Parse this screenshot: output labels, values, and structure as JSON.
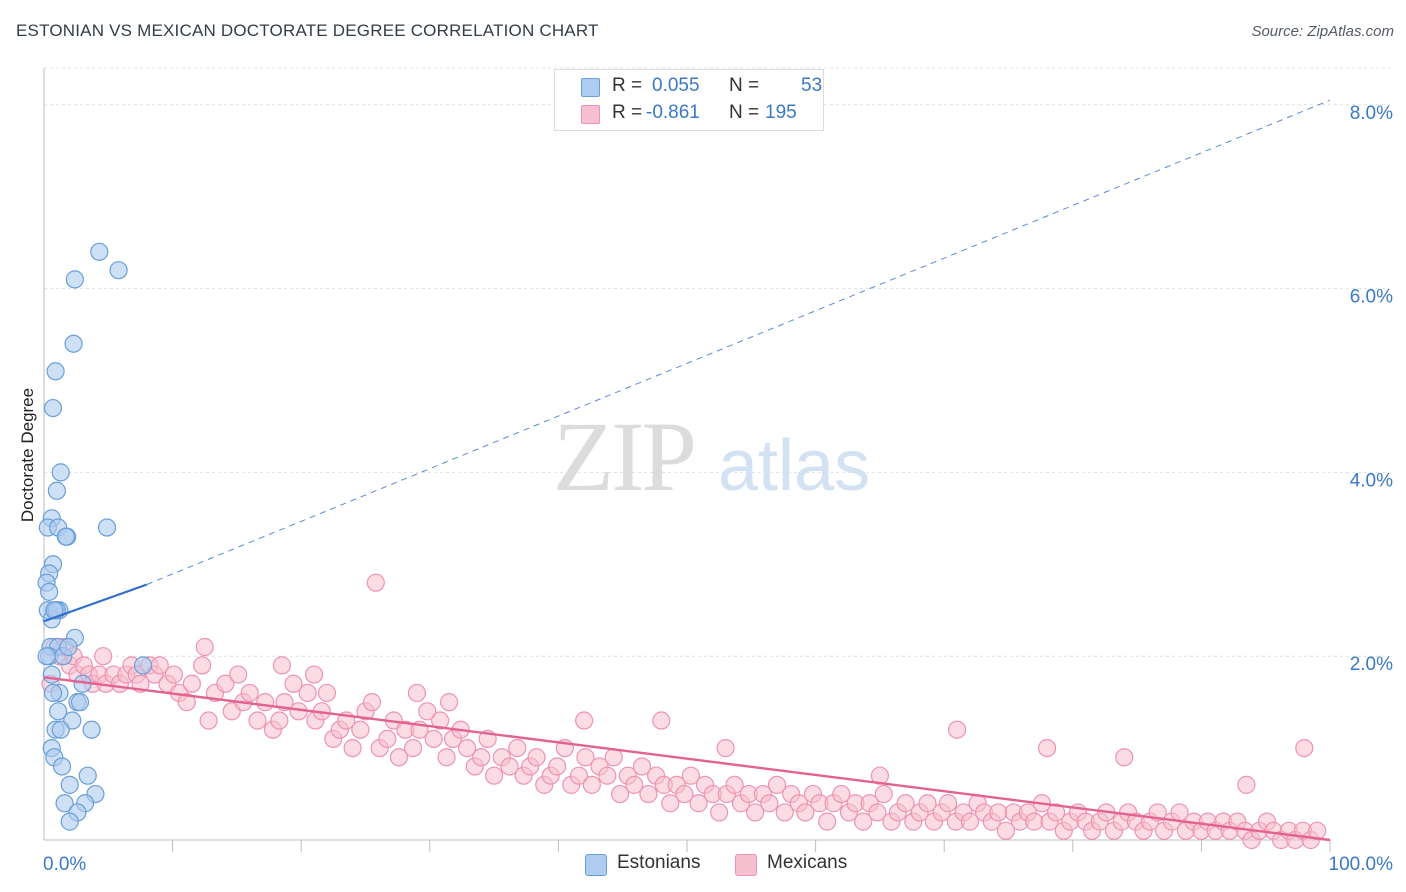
{
  "title": "ESTONIAN VS MEXICAN DOCTORATE DEGREE CORRELATION CHART",
  "source": "Source: ZipAtlas.com",
  "legend": {
    "rows": [
      {
        "r_label": "R =",
        "r_value": "0.055",
        "n_label": "N =",
        "n_value": "53"
      },
      {
        "r_label": "R =",
        "r_value": "-0.861",
        "n_label": "N =",
        "n_value": "195"
      }
    ]
  },
  "bottom_legend": [
    "Estonians",
    "Mexicans"
  ],
  "watermark": {
    "zip": "ZIP",
    "atlas": "atlas"
  },
  "colors": {
    "estonian_fill": "#aecbf0",
    "estonian_stroke": "#6a9fd8",
    "estonian_line": "#2f6fcb",
    "mexican_fill": "#f7bfd0",
    "mexican_stroke": "#ee93b0",
    "mexican_line": "#e4628f",
    "axis_text": "#3a78c9",
    "grid": "#dde1e6"
  },
  "chart_data": {
    "type": "scatter",
    "title": "ESTONIAN VS MEXICAN DOCTORATE DEGREE CORRELATION CHART",
    "xlabel": "",
    "ylabel": "Doctorate Degree",
    "xlim": [
      0,
      100
    ],
    "ylim": [
      0,
      8.4
    ],
    "x_tick_labels": [
      "0.0%",
      "100.0%"
    ],
    "y_ticks": [
      2.0,
      4.0,
      6.0,
      8.0
    ],
    "y_tick_labels": [
      "2.0%",
      "4.0%",
      "6.0%",
      "8.0%"
    ],
    "series": [
      {
        "name": "Estonians",
        "R": 0.055,
        "N": 53,
        "trend": {
          "solid": [
            [
              0,
              2.38
            ],
            [
              8.0,
              2.78
            ]
          ],
          "dashed_to": [
            100,
            8.05
          ]
        },
        "points": [
          [
            4.3,
            6.4
          ],
          [
            5.8,
            6.2
          ],
          [
            2.4,
            6.1
          ],
          [
            2.3,
            5.4
          ],
          [
            0.9,
            5.1
          ],
          [
            0.7,
            4.7
          ],
          [
            1.3,
            4.0
          ],
          [
            1.0,
            3.8
          ],
          [
            0.6,
            3.5
          ],
          [
            0.3,
            3.4
          ],
          [
            1.1,
            3.4
          ],
          [
            1.8,
            3.3
          ],
          [
            4.9,
            3.4
          ],
          [
            1.7,
            3.3
          ],
          [
            0.7,
            3.0
          ],
          [
            0.4,
            2.9
          ],
          [
            0.2,
            2.8
          ],
          [
            0.4,
            2.7
          ],
          [
            0.3,
            2.5
          ],
          [
            0.9,
            2.5
          ],
          [
            1.2,
            2.5
          ],
          [
            0.6,
            2.4
          ],
          [
            1.0,
            2.5
          ],
          [
            0.8,
            2.5
          ],
          [
            2.4,
            2.2
          ],
          [
            0.5,
            2.1
          ],
          [
            1.1,
            2.1
          ],
          [
            0.4,
            2.0
          ],
          [
            1.5,
            2.0
          ],
          [
            7.7,
            1.9
          ],
          [
            0.6,
            1.8
          ],
          [
            3.0,
            1.7
          ],
          [
            1.2,
            1.6
          ],
          [
            2.6,
            1.5
          ],
          [
            2.8,
            1.5
          ],
          [
            1.1,
            1.4
          ],
          [
            2.2,
            1.3
          ],
          [
            0.9,
            1.2
          ],
          [
            1.3,
            1.2
          ],
          [
            3.7,
            1.2
          ],
          [
            0.6,
            1.0
          ],
          [
            0.8,
            0.9
          ],
          [
            1.4,
            0.8
          ],
          [
            3.4,
            0.7
          ],
          [
            2.0,
            0.6
          ],
          [
            4.0,
            0.5
          ],
          [
            1.6,
            0.4
          ],
          [
            3.2,
            0.4
          ],
          [
            2.6,
            0.3
          ],
          [
            2.0,
            0.2
          ],
          [
            0.2,
            2.0
          ],
          [
            0.7,
            1.6
          ],
          [
            1.9,
            2.1
          ]
        ]
      },
      {
        "name": "Mexicans",
        "R": -0.861,
        "N": 195,
        "trend": {
          "solid": [
            [
              0,
              1.77
            ],
            [
              100,
              0.0
            ]
          ]
        },
        "points": [
          [
            0.5,
            1.7
          ],
          [
            0.8,
            2.1
          ],
          [
            1.2,
            2.0
          ],
          [
            1.6,
            2.1
          ],
          [
            2.0,
            1.9
          ],
          [
            2.3,
            2.0
          ],
          [
            2.6,
            1.8
          ],
          [
            3.1,
            1.9
          ],
          [
            3.5,
            1.8
          ],
          [
            3.8,
            1.7
          ],
          [
            4.3,
            1.8
          ],
          [
            4.6,
            2.0
          ],
          [
            4.8,
            1.7
          ],
          [
            5.4,
            1.8
          ],
          [
            5.9,
            1.7
          ],
          [
            6.4,
            1.8
          ],
          [
            6.8,
            1.9
          ],
          [
            7.2,
            1.8
          ],
          [
            7.5,
            1.7
          ],
          [
            8.2,
            1.9
          ],
          [
            8.6,
            1.8
          ],
          [
            9.0,
            1.9
          ],
          [
            9.6,
            1.7
          ],
          [
            10.1,
            1.8
          ],
          [
            10.5,
            1.6
          ],
          [
            11.1,
            1.5
          ],
          [
            11.5,
            1.7
          ],
          [
            12.3,
            1.9
          ],
          [
            12.8,
            1.3
          ],
          [
            13.3,
            1.6
          ],
          [
            14.1,
            1.7
          ],
          [
            14.6,
            1.4
          ],
          [
            15.1,
            1.8
          ],
          [
            15.5,
            1.5
          ],
          [
            16.0,
            1.6
          ],
          [
            16.6,
            1.3
          ],
          [
            17.2,
            1.5
          ],
          [
            17.8,
            1.2
          ],
          [
            18.3,
            1.3
          ],
          [
            18.7,
            1.5
          ],
          [
            19.4,
            1.7
          ],
          [
            19.8,
            1.4
          ],
          [
            20.5,
            1.6
          ],
          [
            21.1,
            1.3
          ],
          [
            21.6,
            1.4
          ],
          [
            22.0,
            1.6
          ],
          [
            22.5,
            1.1
          ],
          [
            23.0,
            1.2
          ],
          [
            23.5,
            1.3
          ],
          [
            24.0,
            1.0
          ],
          [
            24.6,
            1.2
          ],
          [
            25.0,
            1.4
          ],
          [
            25.5,
            1.5
          ],
          [
            26.1,
            1.0
          ],
          [
            26.7,
            1.1
          ],
          [
            27.2,
            1.3
          ],
          [
            27.6,
            0.9
          ],
          [
            28.1,
            1.2
          ],
          [
            28.7,
            1.0
          ],
          [
            29.2,
            1.2
          ],
          [
            29.8,
            1.4
          ],
          [
            30.3,
            1.1
          ],
          [
            30.8,
            1.3
          ],
          [
            31.3,
            0.9
          ],
          [
            31.8,
            1.1
          ],
          [
            32.4,
            1.2
          ],
          [
            32.9,
            1.0
          ],
          [
            33.5,
            0.8
          ],
          [
            34.0,
            0.9
          ],
          [
            34.5,
            1.1
          ],
          [
            35.0,
            0.7
          ],
          [
            35.6,
            0.9
          ],
          [
            36.2,
            0.8
          ],
          [
            36.8,
            1.0
          ],
          [
            37.3,
            0.7
          ],
          [
            37.8,
            0.8
          ],
          [
            38.3,
            0.9
          ],
          [
            38.9,
            0.6
          ],
          [
            39.4,
            0.7
          ],
          [
            39.9,
            0.8
          ],
          [
            40.5,
            1.0
          ],
          [
            41.0,
            0.6
          ],
          [
            41.6,
            0.7
          ],
          [
            42.1,
            0.9
          ],
          [
            42.6,
            0.6
          ],
          [
            43.2,
            0.8
          ],
          [
            43.8,
            0.7
          ],
          [
            44.3,
            0.9
          ],
          [
            44.8,
            0.5
          ],
          [
            45.4,
            0.7
          ],
          [
            45.9,
            0.6
          ],
          [
            46.5,
            0.8
          ],
          [
            47.0,
            0.5
          ],
          [
            47.6,
            0.7
          ],
          [
            48.2,
            0.6
          ],
          [
            48.7,
            0.4
          ],
          [
            49.2,
            0.6
          ],
          [
            49.8,
            0.5
          ],
          [
            50.3,
            0.7
          ],
          [
            50.9,
            0.4
          ],
          [
            51.4,
            0.6
          ],
          [
            52.0,
            0.5
          ],
          [
            52.5,
            0.3
          ],
          [
            53.1,
            0.5
          ],
          [
            53.7,
            0.6
          ],
          [
            54.2,
            0.4
          ],
          [
            54.8,
            0.5
          ],
          [
            55.3,
            0.3
          ],
          [
            55.9,
            0.5
          ],
          [
            56.4,
            0.4
          ],
          [
            57.0,
            0.6
          ],
          [
            57.6,
            0.3
          ],
          [
            58.1,
            0.5
          ],
          [
            58.7,
            0.4
          ],
          [
            59.2,
            0.3
          ],
          [
            59.8,
            0.5
          ],
          [
            60.3,
            0.4
          ],
          [
            60.9,
            0.2
          ],
          [
            61.4,
            0.4
          ],
          [
            62.0,
            0.5
          ],
          [
            62.6,
            0.3
          ],
          [
            63.1,
            0.4
          ],
          [
            63.7,
            0.2
          ],
          [
            64.2,
            0.4
          ],
          [
            64.8,
            0.3
          ],
          [
            65.3,
            0.5
          ],
          [
            65.9,
            0.2
          ],
          [
            66.4,
            0.3
          ],
          [
            67.0,
            0.4
          ],
          [
            67.6,
            0.2
          ],
          [
            68.1,
            0.3
          ],
          [
            68.7,
            0.4
          ],
          [
            69.2,
            0.2
          ],
          [
            69.8,
            0.3
          ],
          [
            70.3,
            0.4
          ],
          [
            70.9,
            0.2
          ],
          [
            71.5,
            0.3
          ],
          [
            72.0,
            0.2
          ],
          [
            72.6,
            0.4
          ],
          [
            73.1,
            0.3
          ],
          [
            73.7,
            0.2
          ],
          [
            74.2,
            0.3
          ],
          [
            74.8,
            0.1
          ],
          [
            75.4,
            0.3
          ],
          [
            75.9,
            0.2
          ],
          [
            76.5,
            0.3
          ],
          [
            77.0,
            0.2
          ],
          [
            77.6,
            0.4
          ],
          [
            78.2,
            0.2
          ],
          [
            78.7,
            0.3
          ],
          [
            79.3,
            0.1
          ],
          [
            79.8,
            0.2
          ],
          [
            80.4,
            0.3
          ],
          [
            81.0,
            0.2
          ],
          [
            81.5,
            0.1
          ],
          [
            82.1,
            0.2
          ],
          [
            82.6,
            0.3
          ],
          [
            83.2,
            0.1
          ],
          [
            83.8,
            0.2
          ],
          [
            84.3,
            0.3
          ],
          [
            84.9,
            0.2
          ],
          [
            85.5,
            0.1
          ],
          [
            86.0,
            0.2
          ],
          [
            86.6,
            0.3
          ],
          [
            87.1,
            0.1
          ],
          [
            87.7,
            0.2
          ],
          [
            88.3,
            0.3
          ],
          [
            88.8,
            0.1
          ],
          [
            89.4,
            0.2
          ],
          [
            90.0,
            0.1
          ],
          [
            90.5,
            0.2
          ],
          [
            91.1,
            0.1
          ],
          [
            91.7,
            0.2
          ],
          [
            92.2,
            0.1
          ],
          [
            92.8,
            0.2
          ],
          [
            93.4,
            0.1
          ],
          [
            93.9,
            0.0
          ],
          [
            94.5,
            0.1
          ],
          [
            95.1,
            0.2
          ],
          [
            95.6,
            0.1
          ],
          [
            96.2,
            0.0
          ],
          [
            96.8,
            0.1
          ],
          [
            97.3,
            0.0
          ],
          [
            97.9,
            0.1
          ],
          [
            98.5,
            0.0
          ],
          [
            99.0,
            0.1
          ],
          [
            25.8,
            2.8
          ],
          [
            12.5,
            2.1
          ],
          [
            18.5,
            1.9
          ],
          [
            21.0,
            1.8
          ],
          [
            29.0,
            1.6
          ],
          [
            31.5,
            1.5
          ],
          [
            42.0,
            1.3
          ],
          [
            48.0,
            1.3
          ],
          [
            71.0,
            1.2
          ],
          [
            84.0,
            0.9
          ],
          [
            93.5,
            0.6
          ],
          [
            98.0,
            1.0
          ],
          [
            53.0,
            1.0
          ],
          [
            65.0,
            0.7
          ],
          [
            78.0,
            1.0
          ]
        ]
      }
    ]
  }
}
